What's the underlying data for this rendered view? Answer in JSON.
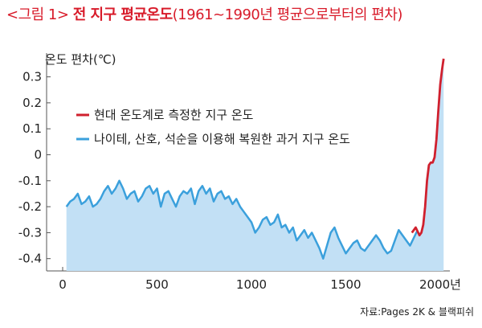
{
  "figure": {
    "label": "<그림 1>",
    "title": "전 지구 평균온도",
    "subtitle": "(1961~1990년 평균으로부터의 편차)",
    "source": "자료:Pages 2K & 블랙피쉬"
  },
  "chart_data": {
    "type": "line",
    "ylabel": "온도 편차(℃)",
    "xlabel": "",
    "xlim": [
      0,
      2000
    ],
    "ylim": [
      -0.45,
      0.4
    ],
    "x_ticks": [
      0,
      500,
      1000,
      1500,
      2000
    ],
    "x_tick_labels": [
      "0",
      "500",
      "1000",
      "1500",
      "2000년"
    ],
    "y_ticks": [
      0.3,
      0.2,
      0.1,
      0,
      -0.1,
      -0.2,
      -0.3,
      -0.4
    ],
    "y_tick_labels": [
      "0.3",
      "0.2",
      "0.1",
      "0",
      "-0.1",
      "-0.2",
      "-0.3",
      "-0.4"
    ],
    "grid": false,
    "legend_position": "upper-left",
    "series": [
      {
        "name": "현대 온도계로 측정한 지구 온도",
        "color": "#d0202e",
        "x": [
          1850,
          1870,
          1890,
          1900,
          1910,
          1920,
          1930,
          1940,
          1950,
          1960,
          1970,
          1980,
          1990,
          2000,
          2010,
          2018
        ],
        "values": [
          -0.3,
          -0.28,
          -0.31,
          -0.3,
          -0.27,
          -0.2,
          -0.1,
          -0.04,
          -0.03,
          -0.03,
          -0.01,
          0.06,
          0.17,
          0.27,
          0.33,
          0.37
        ]
      },
      {
        "name": "나이테, 산호, 석순을 이용해 복원한 과거 지구 온도",
        "color": "#3ba0dc",
        "fill": "#c2e0f5",
        "x": [
          20,
          40,
          60,
          80,
          100,
          120,
          140,
          160,
          180,
          200,
          220,
          240,
          260,
          280,
          300,
          320,
          340,
          360,
          380,
          400,
          420,
          440,
          460,
          480,
          500,
          520,
          540,
          560,
          580,
          600,
          620,
          640,
          660,
          680,
          700,
          720,
          740,
          760,
          780,
          800,
          820,
          840,
          860,
          880,
          900,
          920,
          940,
          960,
          980,
          1000,
          1020,
          1040,
          1060,
          1080,
          1100,
          1120,
          1140,
          1160,
          1180,
          1200,
          1220,
          1240,
          1260,
          1280,
          1300,
          1320,
          1340,
          1360,
          1380,
          1400,
          1420,
          1440,
          1460,
          1480,
          1500,
          1520,
          1540,
          1560,
          1580,
          1600,
          1620,
          1640,
          1660,
          1680,
          1700,
          1720,
          1740,
          1760,
          1780,
          1800,
          1820,
          1840,
          1860,
          1880
        ],
        "values": [
          -0.2,
          -0.18,
          -0.17,
          -0.15,
          -0.19,
          -0.18,
          -0.16,
          -0.2,
          -0.19,
          -0.17,
          -0.14,
          -0.12,
          -0.15,
          -0.13,
          -0.1,
          -0.13,
          -0.17,
          -0.15,
          -0.14,
          -0.18,
          -0.16,
          -0.13,
          -0.12,
          -0.15,
          -0.13,
          -0.2,
          -0.15,
          -0.14,
          -0.17,
          -0.2,
          -0.16,
          -0.14,
          -0.15,
          -0.13,
          -0.19,
          -0.14,
          -0.12,
          -0.15,
          -0.13,
          -0.18,
          -0.15,
          -0.14,
          -0.17,
          -0.16,
          -0.19,
          -0.17,
          -0.2,
          -0.22,
          -0.24,
          -0.26,
          -0.3,
          -0.28,
          -0.25,
          -0.24,
          -0.27,
          -0.26,
          -0.23,
          -0.28,
          -0.27,
          -0.3,
          -0.28,
          -0.33,
          -0.31,
          -0.29,
          -0.32,
          -0.3,
          -0.33,
          -0.36,
          -0.4,
          -0.35,
          -0.3,
          -0.28,
          -0.32,
          -0.35,
          -0.38,
          -0.36,
          -0.34,
          -0.33,
          -0.36,
          -0.37,
          -0.35,
          -0.33,
          -0.31,
          -0.33,
          -0.36,
          -0.38,
          -0.37,
          -0.33,
          -0.29,
          -0.31,
          -0.33,
          -0.35,
          -0.32,
          -0.29
        ]
      }
    ]
  }
}
